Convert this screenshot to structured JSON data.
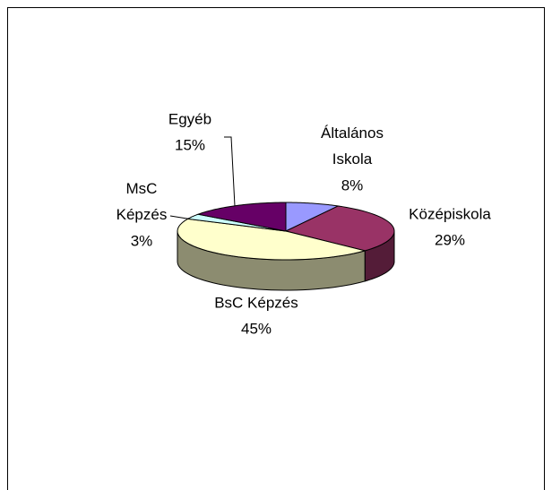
{
  "chart_data": {
    "type": "pie3d",
    "categories": [
      "Általános Iskola",
      "Középiskola",
      "BsC Képzés",
      "MsC Képzés",
      "Egyéb"
    ],
    "values": [
      8,
      29,
      45,
      3,
      15
    ],
    "value_labels": [
      "8%",
      "29%",
      "45%",
      "3%",
      "15%"
    ],
    "colors": [
      "#9999ff",
      "#993366",
      "#ffffcc",
      "#ccffff",
      "#660066"
    ]
  }
}
